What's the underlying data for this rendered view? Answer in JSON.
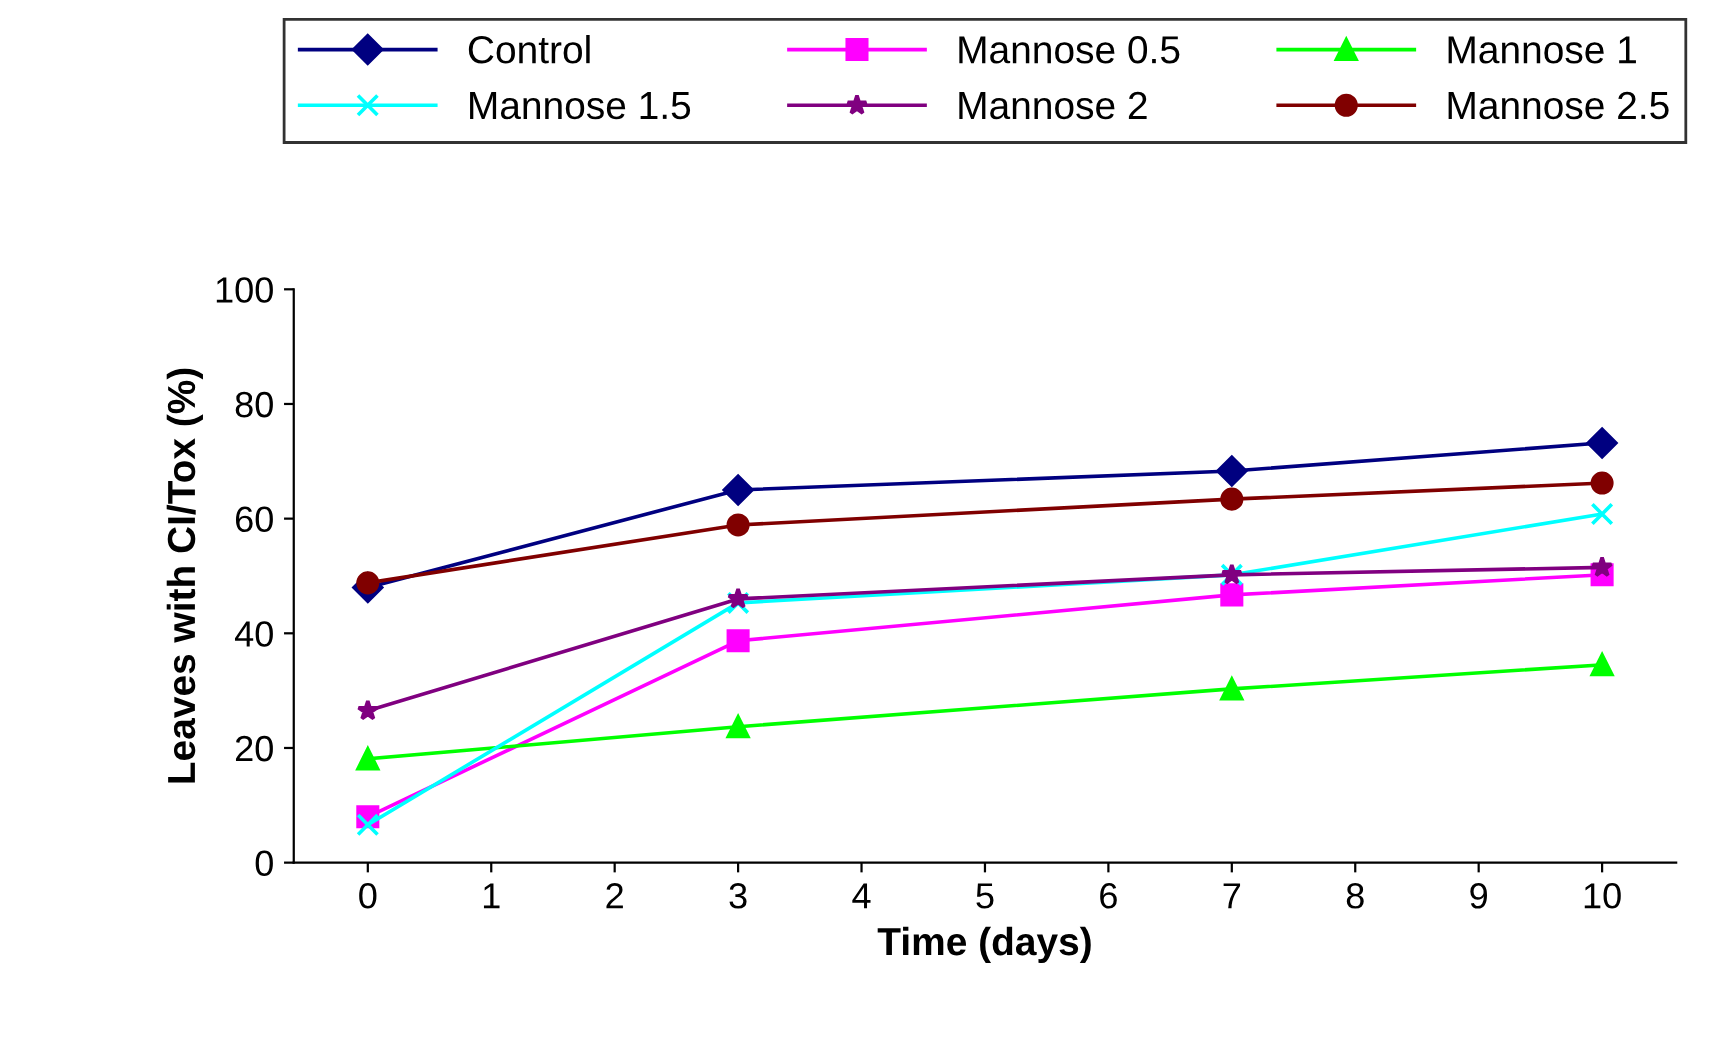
{
  "chart_data": {
    "type": "line",
    "xlabel": "Time (days)",
    "ylabel": "Leaves with CI/Tox (%)",
    "x": [
      0,
      3,
      7,
      10
    ],
    "xlim": [
      -0.6,
      10.6
    ],
    "xticks": [
      0,
      1,
      2,
      3,
      4,
      5,
      6,
      7,
      8,
      9,
      10
    ],
    "ylim": [
      0,
      100
    ],
    "yticks": [
      0,
      20,
      40,
      60,
      80,
      100
    ],
    "grid": false,
    "legend": "top",
    "series": [
      {
        "name": "Control",
        "color": "#000080",
        "marker": "diamond",
        "values": [
          48,
          65,
          68.3,
          73.2
        ]
      },
      {
        "name": "Mannose 0.5",
        "color": "#ff00ff",
        "marker": "square",
        "values": [
          8,
          38.7,
          46.7,
          50.2
        ]
      },
      {
        "name": "Mannose 1",
        "color": "#00ff00",
        "marker": "triangle",
        "values": [
          18.1,
          23.7,
          30.3,
          34.5
        ]
      },
      {
        "name": "Mannose 1.5",
        "color": "#00ffff",
        "marker": "cross",
        "values": [
          6.6,
          45.3,
          50.2,
          60.8
        ]
      },
      {
        "name": "Mannose 2",
        "color": "#800080",
        "marker": "star",
        "values": [
          26.5,
          46,
          50.2,
          51.5
        ]
      },
      {
        "name": "Mannose 2.5",
        "color": "#800000",
        "marker": "circle",
        "values": [
          48.8,
          58.9,
          63.4,
          66.2
        ]
      }
    ]
  }
}
